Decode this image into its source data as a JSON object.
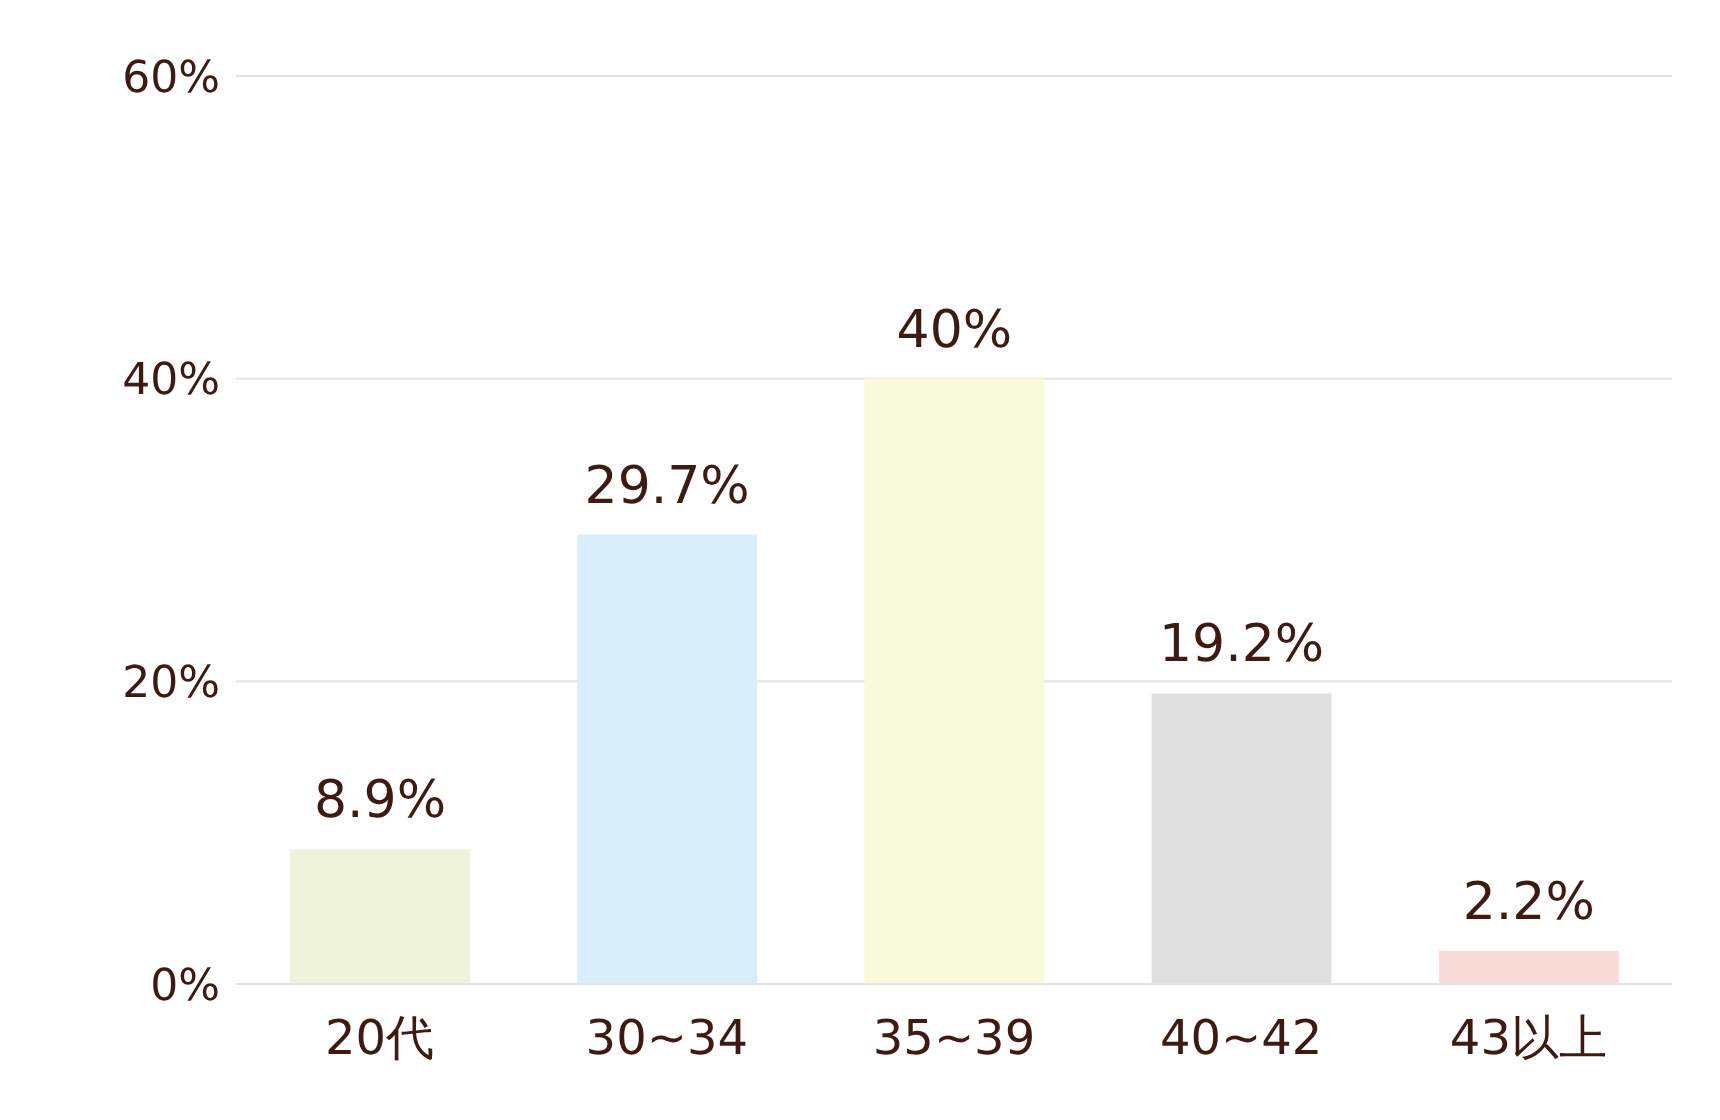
{
  "chart_data": {
    "type": "bar",
    "categories": [
      "20代",
      "30~34",
      "35~39",
      "40~42",
      "43以上"
    ],
    "values": [
      8.9,
      29.7,
      40,
      19.2,
      2.2
    ],
    "colors": [
      "#eef3d9",
      "#d9eefb",
      "#f9f9dc",
      "#e0e0e0",
      "#fadcd8"
    ],
    "value_labels": [
      "8.9%",
      "29.7%",
      "40%",
      "19.2%",
      "2.2%"
    ],
    "ylim": [
      0,
      60
    ],
    "yticks": [
      {
        "value": 0,
        "label": "0%"
      },
      {
        "value": 20,
        "label": "20%"
      },
      {
        "value": 40,
        "label": "40%"
      },
      {
        "value": 60,
        "label": "60%"
      }
    ],
    "grid": "y"
  }
}
